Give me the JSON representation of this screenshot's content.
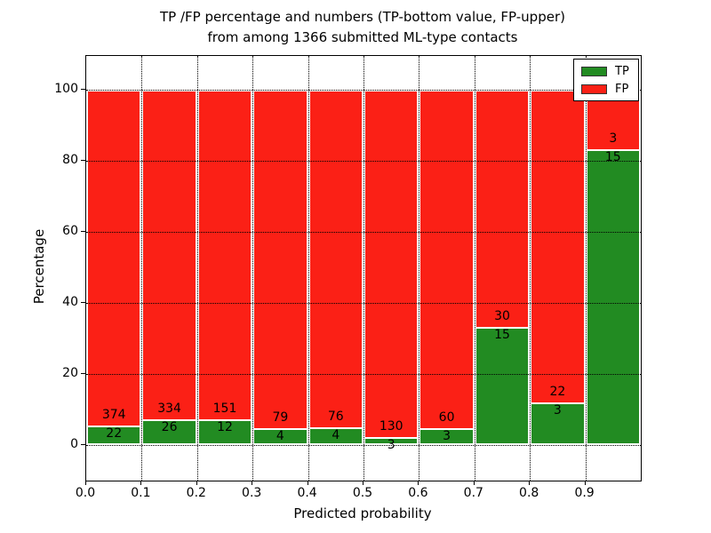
{
  "figure": {
    "title_line1": "TP /FP percentage and numbers (TP-bottom value, FP-upper)",
    "title_line2": "from among 1366 submitted ML-type contacts",
    "xlabel": "Predicted probability",
    "ylabel": "Percentage",
    "background_color": "#ffffff"
  },
  "legend": {
    "position": "upper right",
    "items": [
      {
        "label": "TP",
        "color": "#228b22"
      },
      {
        "label": "FP",
        "color": "#fb2016"
      }
    ]
  },
  "axes": {
    "ytick_labels": [
      "0",
      "20",
      "40",
      "60",
      "80",
      "100"
    ],
    "ytick_values": [
      0,
      20,
      40,
      60,
      80,
      100
    ],
    "xtick_labels": [
      "0.0",
      "0.1",
      "0.2",
      "0.3",
      "0.4",
      "0.5",
      "0.6",
      "0.7",
      "0.8",
      "0.9"
    ],
    "xtick_values": [
      0.0,
      0.1,
      0.2,
      0.3,
      0.4,
      0.5,
      0.6,
      0.7,
      0.8,
      0.9
    ]
  },
  "chart_data": {
    "type": "bar",
    "stacked": true,
    "title": "TP /FP percentage and numbers (TP-bottom value, FP-upper) from among 1366 submitted ML-type contacts",
    "xlabel": "Predicted probability",
    "ylabel": "Percentage",
    "total_contacts": 1366,
    "bin_edges": [
      0.0,
      0.1,
      0.2,
      0.3,
      0.4,
      0.5,
      0.6,
      0.7,
      0.8,
      0.9,
      1.0
    ],
    "categories": [
      "0.0-0.1",
      "0.1-0.2",
      "0.2-0.3",
      "0.3-0.4",
      "0.4-0.5",
      "0.5-0.6",
      "0.6-0.7",
      "0.7-0.8",
      "0.8-0.9",
      "0.9-1.0"
    ],
    "series": [
      {
        "name": "TP",
        "color": "#228b22",
        "counts": [
          22,
          26,
          12,
          4,
          4,
          3,
          3,
          15,
          3,
          15
        ]
      },
      {
        "name": "FP",
        "color": "#fb2016",
        "counts": [
          374,
          334,
          151,
          79,
          76,
          130,
          60,
          30,
          22,
          3
        ]
      }
    ],
    "tp_percent": [
      5.6,
      7.2,
      7.4,
      4.8,
      5.0,
      2.3,
      4.8,
      33.3,
      12.0,
      83.3
    ],
    "bar_totals_percent": 100,
    "ylim": [
      -10,
      109.5
    ],
    "xlim": [
      0.0,
      1.0
    ],
    "grid": true,
    "grid_style": "dotted",
    "legend_position": "upper right"
  }
}
